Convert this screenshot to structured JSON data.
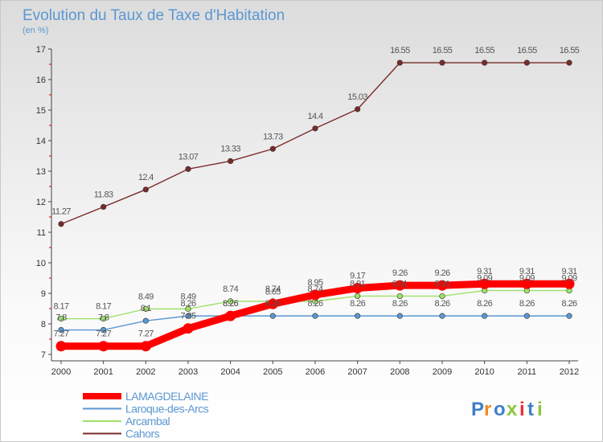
{
  "chart_data": {
    "type": "line",
    "title": "Evolution du Taux de Taxe d'Habitation",
    "subtitle": "(en %)",
    "xlabel": "",
    "ylabel": "",
    "x": [
      "2000",
      "2001",
      "2002",
      "2003",
      "2004",
      "2005",
      "2006",
      "2007",
      "2008",
      "2009",
      "2010",
      "2011",
      "2012"
    ],
    "ylim": [
      7,
      17
    ],
    "yticks": [
      7,
      8,
      9,
      10,
      11,
      12,
      13,
      14,
      15,
      16,
      17
    ],
    "grid": false,
    "legend_position": "bottom-left",
    "series": [
      {
        "name": "LAMAGDELAINE",
        "color": "#ff0000",
        "values": [
          7.27,
          7.27,
          7.27,
          7.85,
          8.26,
          8.65,
          8.95,
          9.17,
          9.26,
          9.26,
          9.31,
          9.31,
          9.31
        ],
        "labels": [
          "7.27",
          "7.27",
          "7.27",
          "7.85",
          "8.26",
          "8.65",
          "8.95",
          "9.17",
          "9.26",
          "9.26",
          "9.31",
          "9.31",
          "9.31"
        ]
      },
      {
        "name": "Laroque-des-Arcs",
        "color": "#5b97d2",
        "values": [
          7.8,
          7.8,
          8.1,
          8.26,
          8.26,
          8.26,
          8.26,
          8.26,
          8.26,
          8.26,
          8.26,
          8.26,
          8.26
        ],
        "labels": [
          "7.8",
          "7.8",
          "8.1",
          "8.26",
          "8.26",
          "8.26",
          "8.26",
          "8.26",
          "8.26",
          "8.26",
          "8.26",
          "8.26",
          "8.26"
        ]
      },
      {
        "name": "Arcambal",
        "color": "#9ee16b",
        "values": [
          8.17,
          8.17,
          8.49,
          8.49,
          8.74,
          8.74,
          8.74,
          8.91,
          8.91,
          8.91,
          9.09,
          9.09,
          9.09
        ],
        "labels": [
          "8.17",
          "8.17",
          "8.49",
          "8.49",
          "8.74",
          "8.74",
          "8.74",
          "8.91",
          "8.91",
          "8.91",
          "9.09",
          "9.09",
          "9.09"
        ]
      },
      {
        "name": "Cahors",
        "color": "#7a2a2a",
        "values": [
          11.27,
          11.83,
          12.4,
          13.07,
          13.33,
          13.73,
          14.4,
          15.03,
          16.55,
          16.55,
          16.55,
          16.55,
          16.55
        ],
        "labels": [
          "11.27",
          "11.83",
          "12.4",
          "13.07",
          "13.33",
          "13.73",
          "14.4",
          "15.03",
          "16.55",
          "16.55",
          "16.55",
          "16.55",
          "16.55"
        ]
      }
    ]
  },
  "logo": {
    "text": "Proxiti"
  }
}
